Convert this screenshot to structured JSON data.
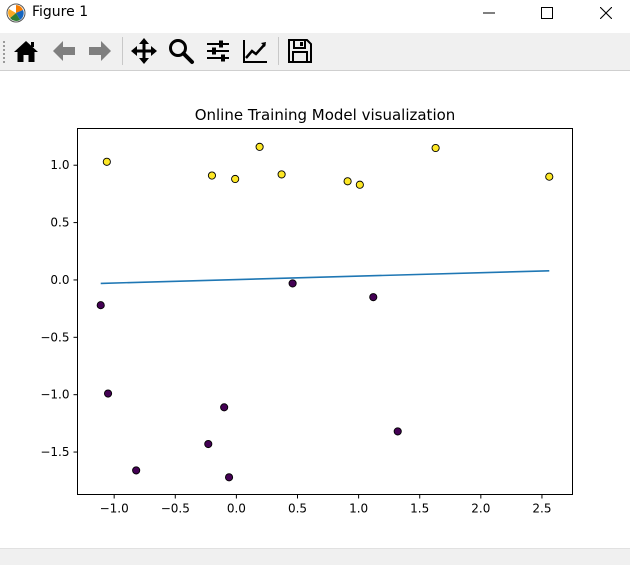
{
  "window": {
    "title": "Figure 1",
    "controls": [
      "minimize",
      "maximize",
      "close"
    ]
  },
  "toolbar": {
    "buttons": [
      {
        "name": "home",
        "icon": "home-icon"
      },
      {
        "name": "back",
        "icon": "arrow-left-icon"
      },
      {
        "name": "forward",
        "icon": "arrow-right-icon"
      },
      {
        "name": "pan",
        "icon": "move-icon"
      },
      {
        "name": "zoom",
        "icon": "magnifier-icon"
      },
      {
        "name": "subplots",
        "icon": "sliders-icon"
      },
      {
        "name": "edit-axis",
        "icon": "line-chart-icon"
      },
      {
        "name": "save",
        "icon": "floppy-disk-icon"
      }
    ]
  },
  "chart_data": {
    "type": "scatter",
    "title": "Online Training Model visualization",
    "xlabel": "",
    "ylabel": "",
    "xlim": [
      -1.3,
      2.75
    ],
    "ylim": [
      -1.87,
      1.32
    ],
    "xticks": [
      -1.0,
      -0.5,
      0.0,
      0.5,
      1.0,
      1.5,
      2.0,
      2.5
    ],
    "xtick_labels": [
      "−1.0",
      "−0.5",
      "0.0",
      "0.5",
      "1.0",
      "1.5",
      "2.0",
      "2.5"
    ],
    "yticks": [
      1.0,
      0.5,
      0.0,
      -0.5,
      -1.0,
      -1.5
    ],
    "ytick_labels": [
      "1.0",
      "0.5",
      "0.0",
      "−0.5",
      "−1.0",
      "−1.5"
    ],
    "grid": false,
    "colors": {
      "class1": "#fde725",
      "class0": "#440154",
      "line": "#1f77b4",
      "edge": "#000000"
    },
    "points": [
      {
        "x": -1.06,
        "y": 1.03,
        "class": 1
      },
      {
        "x": -0.2,
        "y": 0.91,
        "class": 1
      },
      {
        "x": -0.01,
        "y": 0.88,
        "class": 1
      },
      {
        "x": 0.19,
        "y": 1.16,
        "class": 1
      },
      {
        "x": 0.37,
        "y": 0.92,
        "class": 1
      },
      {
        "x": 0.91,
        "y": 0.86,
        "class": 1
      },
      {
        "x": 1.01,
        "y": 0.83,
        "class": 1
      },
      {
        "x": 1.63,
        "y": 1.15,
        "class": 1
      },
      {
        "x": 2.56,
        "y": 0.9,
        "class": 1
      },
      {
        "x": -1.11,
        "y": -0.22,
        "class": 0
      },
      {
        "x": 0.46,
        "y": -0.03,
        "class": 0
      },
      {
        "x": 1.12,
        "y": -0.15,
        "class": 0
      },
      {
        "x": -1.05,
        "y": -0.99,
        "class": 0
      },
      {
        "x": -0.1,
        "y": -1.11,
        "class": 0
      },
      {
        "x": 1.32,
        "y": -1.32,
        "class": 0
      },
      {
        "x": -0.23,
        "y": -1.43,
        "class": 0
      },
      {
        "x": -0.82,
        "y": -1.66,
        "class": 0
      },
      {
        "x": -0.06,
        "y": -1.72,
        "class": 0
      }
    ],
    "line": {
      "x": [
        -1.11,
        2.56
      ],
      "y": [
        -0.03,
        0.08
      ]
    }
  }
}
